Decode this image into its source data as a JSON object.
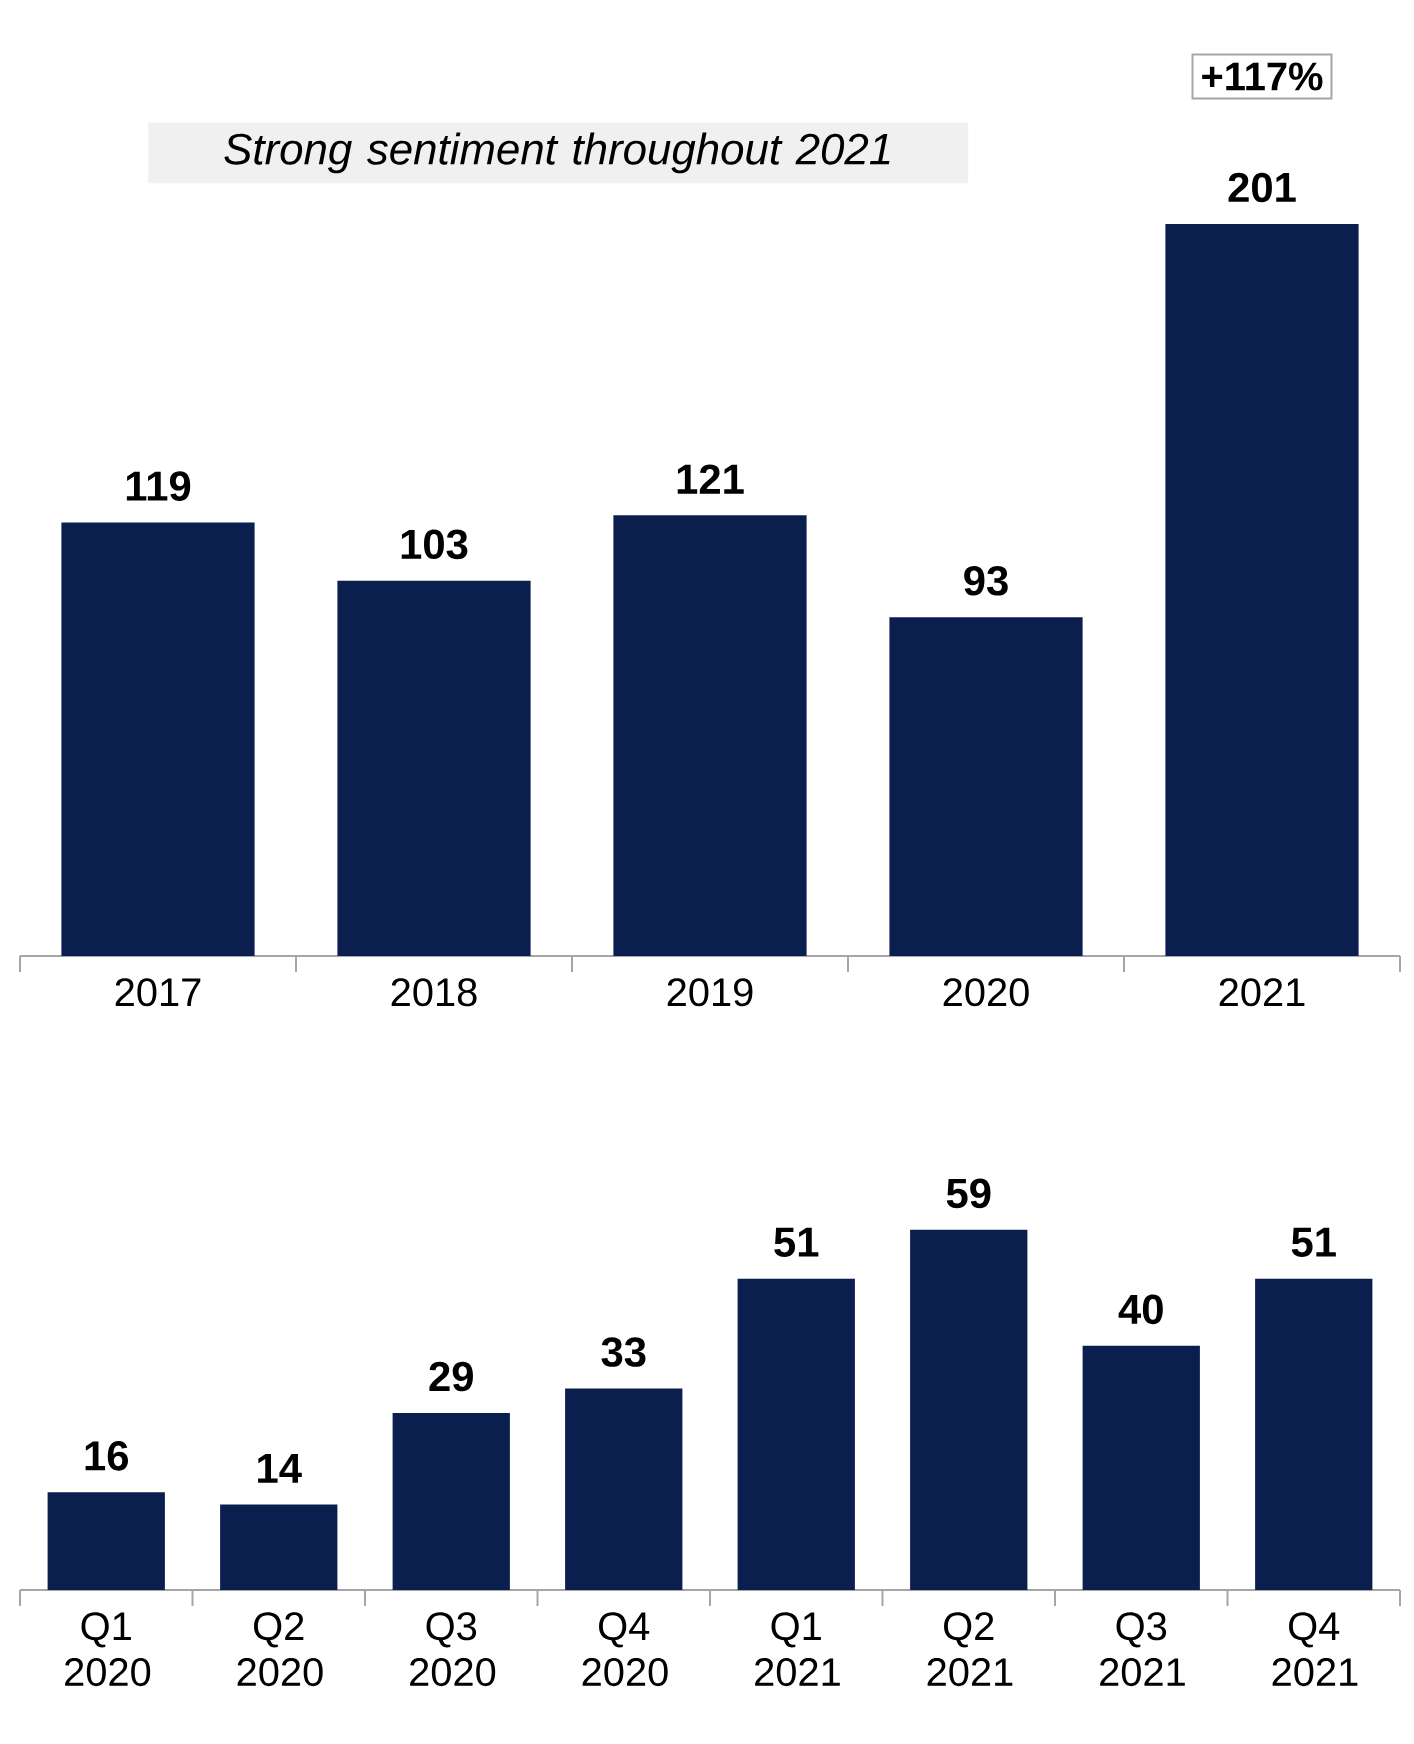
{
  "chart_data": [
    {
      "type": "bar",
      "categories": [
        "2017",
        "2018",
        "2019",
        "2020",
        "2021"
      ],
      "values": [
        119,
        103,
        121,
        93,
        201
      ],
      "color": "#0b1f4f",
      "data_labels": true,
      "annotations": [
        "Strong sentiment throughout 2021",
        "+117%"
      ]
    },
    {
      "type": "bar",
      "categories": [
        "Q1 2020",
        "Q2 2020",
        "Q3 2020",
        "Q4 2020",
        "Q1 2021",
        "Q2 2021",
        "Q3 2021",
        "Q4 2021"
      ],
      "values": [
        16,
        14,
        29,
        33,
        51,
        59,
        40,
        51
      ],
      "color": "#0b1f4f",
      "data_labels": true
    }
  ]
}
